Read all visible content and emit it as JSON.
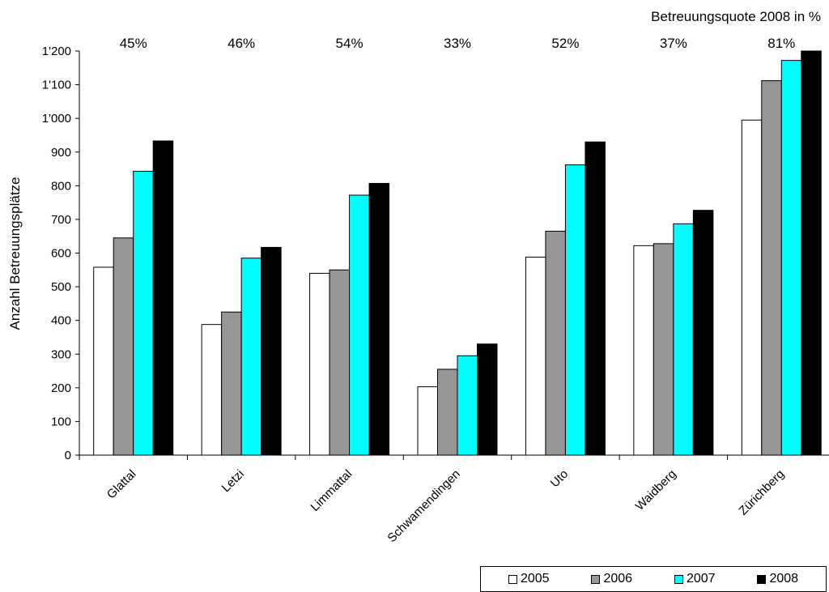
{
  "chart_data": {
    "type": "bar",
    "title": "",
    "annotation_title": "Betreuungsquote 2008 in %",
    "ylabel": "Anzahl Betreuungsplätze",
    "xlabel": "",
    "ylim": [
      0,
      1200
    ],
    "yticks": [
      0,
      100,
      200,
      300,
      400,
      500,
      600,
      700,
      800,
      900,
      1000,
      1100,
      1200
    ],
    "ytick_labels": [
      "0",
      "100",
      "200",
      "300",
      "400",
      "500",
      "600",
      "700",
      "800",
      "900",
      "1'000",
      "1'100",
      "1'200"
    ],
    "categories": [
      "Glattal",
      "Letzi",
      "Limmattal",
      "Schwamendingen",
      "Uto",
      "Waidberg",
      "Zürichberg"
    ],
    "quota_labels": [
      "45%",
      "46%",
      "54%",
      "33%",
      "52%",
      "37%",
      "81%"
    ],
    "series": [
      {
        "name": "2005",
        "color": "#ffffff",
        "values": [
          558,
          388,
          540,
          203,
          588,
          622,
          995
        ]
      },
      {
        "name": "2006",
        "color": "#969696",
        "values": [
          645,
          425,
          550,
          255,
          665,
          628,
          1112
        ]
      },
      {
        "name": "2007",
        "color": "#00ffff",
        "values": [
          843,
          585,
          772,
          295,
          862,
          687,
          1172
        ]
      },
      {
        "name": "2008",
        "color": "#000000",
        "values": [
          933,
          617,
          807,
          330,
          930,
          727,
          1200
        ]
      }
    ],
    "grid": false,
    "legend_position": "bottom-right"
  }
}
